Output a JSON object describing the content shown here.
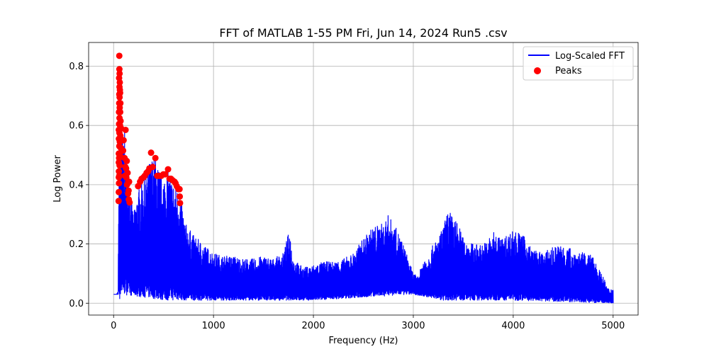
{
  "chart_data": {
    "type": "line",
    "title": "FFT of MATLAB 1-55 PM Fri, Jun 14, 2024 Run5 .csv",
    "xlabel": "Frequency (Hz)",
    "ylabel": "Log Power",
    "xlim": [
      -250,
      5250
    ],
    "ylim": [
      -0.04,
      0.88
    ],
    "xticks": [
      0,
      1000,
      2000,
      3000,
      4000,
      5000
    ],
    "xtick_labels": [
      "0",
      "1000",
      "2000",
      "3000",
      "4000",
      "5000"
    ],
    "yticks": [
      0.0,
      0.2,
      0.4,
      0.6,
      0.8
    ],
    "ytick_labels": [
      "0.0",
      "0.2",
      "0.4",
      "0.6",
      "0.8"
    ],
    "grid": true,
    "legend_position": "top-right",
    "colors": {
      "line": "#0000ff",
      "peaks": "#ff0000",
      "grid": "#b0b0b0"
    },
    "series": [
      {
        "name": "Log-Scaled FFT",
        "kind": "line",
        "envelope": [
          [
            0,
            0.03
          ],
          [
            30,
            0.03
          ],
          [
            45,
            0.04
          ],
          [
            50,
            0.3
          ],
          [
            55,
            0.8
          ],
          [
            60,
            0.83
          ],
          [
            70,
            0.72
          ],
          [
            80,
            0.62
          ],
          [
            90,
            0.58
          ],
          [
            110,
            0.58
          ],
          [
            130,
            0.46
          ],
          [
            160,
            0.4
          ],
          [
            200,
            0.3
          ],
          [
            240,
            0.38
          ],
          [
            300,
            0.42
          ],
          [
            380,
            0.5
          ],
          [
            420,
            0.49
          ],
          [
            480,
            0.43
          ],
          [
            540,
            0.45
          ],
          [
            600,
            0.41
          ],
          [
            660,
            0.38
          ],
          [
            720,
            0.27
          ],
          [
            800,
            0.23
          ],
          [
            900,
            0.2
          ],
          [
            1000,
            0.17
          ],
          [
            1100,
            0.16
          ],
          [
            1200,
            0.16
          ],
          [
            1300,
            0.15
          ],
          [
            1400,
            0.15
          ],
          [
            1500,
            0.16
          ],
          [
            1600,
            0.15
          ],
          [
            1700,
            0.17
          ],
          [
            1760,
            0.25
          ],
          [
            1800,
            0.15
          ],
          [
            1900,
            0.12
          ],
          [
            2000,
            0.13
          ],
          [
            2100,
            0.14
          ],
          [
            2200,
            0.14
          ],
          [
            2300,
            0.15
          ],
          [
            2400,
            0.17
          ],
          [
            2500,
            0.22
          ],
          [
            2600,
            0.26
          ],
          [
            2700,
            0.27
          ],
          [
            2750,
            0.3
          ],
          [
            2800,
            0.27
          ],
          [
            2850,
            0.24
          ],
          [
            2900,
            0.2
          ],
          [
            2950,
            0.15
          ],
          [
            3000,
            0.1
          ],
          [
            3050,
            0.09
          ],
          [
            3100,
            0.15
          ],
          [
            3150,
            0.16
          ],
          [
            3200,
            0.2
          ],
          [
            3250,
            0.22
          ],
          [
            3300,
            0.26
          ],
          [
            3350,
            0.32
          ],
          [
            3400,
            0.29
          ],
          [
            3450,
            0.27
          ],
          [
            3500,
            0.22
          ],
          [
            3600,
            0.2
          ],
          [
            3700,
            0.2
          ],
          [
            3800,
            0.24
          ],
          [
            3900,
            0.22
          ],
          [
            4000,
            0.25
          ],
          [
            4100,
            0.23
          ],
          [
            4200,
            0.18
          ],
          [
            4300,
            0.17
          ],
          [
            4400,
            0.19
          ],
          [
            4500,
            0.2
          ],
          [
            4600,
            0.18
          ],
          [
            4700,
            0.17
          ],
          [
            4800,
            0.16
          ],
          [
            4850,
            0.12
          ],
          [
            4900,
            0.09
          ],
          [
            4950,
            0.05
          ],
          [
            5000,
            0.05
          ]
        ],
        "floor": [
          [
            0,
            0.03
          ],
          [
            50,
            0.03
          ],
          [
            60,
            0.01
          ],
          [
            80,
            0.03
          ],
          [
            300,
            0.02
          ],
          [
            500,
            0.01
          ],
          [
            1000,
            0.01
          ],
          [
            2000,
            0.01
          ],
          [
            3000,
            0.03
          ],
          [
            3300,
            0.01
          ],
          [
            4000,
            0.01
          ],
          [
            5000,
            0.0
          ]
        ]
      },
      {
        "name": "Peaks",
        "kind": "scatter",
        "points": [
          [
            57,
            0.835
          ],
          [
            58,
            0.79
          ],
          [
            60,
            0.775
          ],
          [
            55,
            0.76
          ],
          [
            62,
            0.745
          ],
          [
            59,
            0.73
          ],
          [
            63,
            0.72
          ],
          [
            57,
            0.705
          ],
          [
            65,
            0.71
          ],
          [
            60,
            0.695
          ],
          [
            56,
            0.675
          ],
          [
            68,
            0.675
          ],
          [
            61,
            0.66
          ],
          [
            54,
            0.645
          ],
          [
            66,
            0.645
          ],
          [
            59,
            0.625
          ],
          [
            70,
            0.615
          ],
          [
            55,
            0.605
          ],
          [
            64,
            0.6
          ],
          [
            52,
            0.585
          ],
          [
            75,
            0.59
          ],
          [
            58,
            0.575
          ],
          [
            68,
            0.565
          ],
          [
            53,
            0.555
          ],
          [
            62,
            0.545
          ],
          [
            57,
            0.53
          ],
          [
            70,
            0.525
          ],
          [
            52,
            0.505
          ],
          [
            62,
            0.5
          ],
          [
            55,
            0.49
          ],
          [
            52,
            0.475
          ],
          [
            60,
            0.465
          ],
          [
            53,
            0.445
          ],
          [
            57,
            0.43
          ],
          [
            52,
            0.425
          ],
          [
            54,
            0.405
          ],
          [
            52,
            0.375
          ],
          [
            50,
            0.345
          ],
          [
            120,
            0.585
          ],
          [
            100,
            0.55
          ],
          [
            95,
            0.515
          ],
          [
            110,
            0.49
          ],
          [
            132,
            0.48
          ],
          [
            118,
            0.46
          ],
          [
            125,
            0.455
          ],
          [
            140,
            0.44
          ],
          [
            113,
            0.43
          ],
          [
            128,
            0.425
          ],
          [
            147,
            0.41
          ],
          [
            135,
            0.4
          ],
          [
            155,
            0.41
          ],
          [
            150,
            0.38
          ],
          [
            145,
            0.37
          ],
          [
            152,
            0.35
          ],
          [
            160,
            0.34
          ],
          [
            245,
            0.395
          ],
          [
            265,
            0.41
          ],
          [
            280,
            0.42
          ],
          [
            300,
            0.425
          ],
          [
            312,
            0.43
          ],
          [
            330,
            0.44
          ],
          [
            345,
            0.445
          ],
          [
            358,
            0.455
          ],
          [
            375,
            0.508
          ],
          [
            392,
            0.46
          ],
          [
            418,
            0.49
          ],
          [
            436,
            0.43
          ],
          [
            455,
            0.43
          ],
          [
            478,
            0.43
          ],
          [
            498,
            0.435
          ],
          [
            516,
            0.435
          ],
          [
            545,
            0.452
          ],
          [
            560,
            0.42
          ],
          [
            575,
            0.42
          ],
          [
            590,
            0.415
          ],
          [
            610,
            0.41
          ],
          [
            620,
            0.405
          ],
          [
            632,
            0.395
          ],
          [
            648,
            0.385
          ],
          [
            660,
            0.385
          ],
          [
            662,
            0.36
          ],
          [
            665,
            0.338
          ]
        ]
      }
    ]
  }
}
